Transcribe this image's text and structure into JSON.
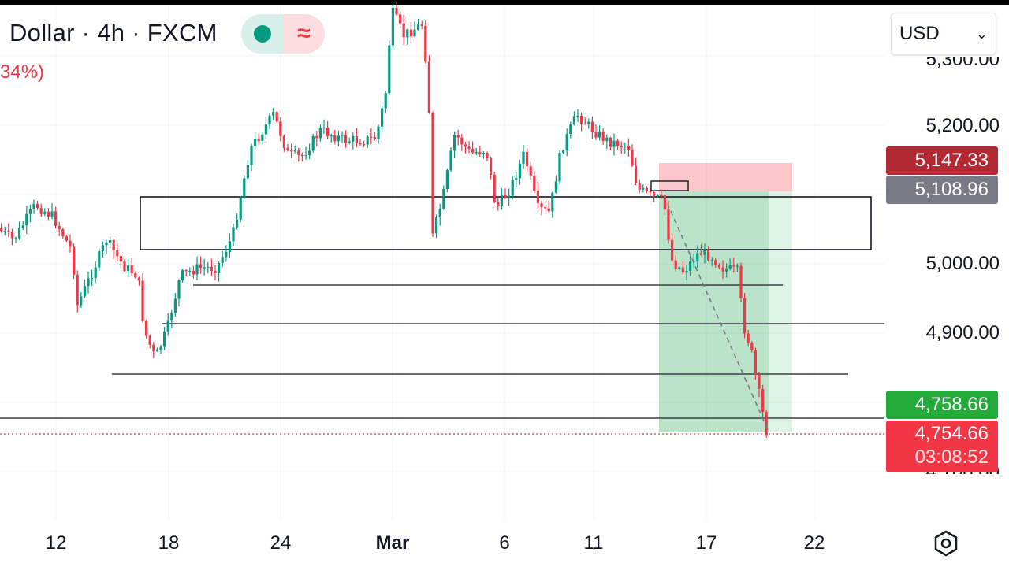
{
  "header": {
    "title": "Dollar · 4h · FXCM",
    "change": "34%)",
    "currency": "USD",
    "wave_icon": "≈"
  },
  "price_axis": {
    "labels": [
      "5,200.00",
      "5,000.00",
      "4,900.00"
    ],
    "top_partial": "5,300.00",
    "bottom_partial": "4,700.00"
  },
  "price_tags": {
    "stop": "5,147.33",
    "entry": "5,108.96",
    "target": "4,758.66",
    "current": "4,754.66",
    "countdown": "03:08:52"
  },
  "colors": {
    "up": "#089981",
    "down": "#f23645",
    "stop_tag": "#b22833",
    "entry_tag": "#787b86",
    "target_tag": "#22ab39",
    "current_tag": "#f23645"
  },
  "time_axis": {
    "labels": [
      "12",
      "18",
      "24",
      "Mar",
      "6",
      "11",
      "17",
      "22"
    ]
  },
  "icons": {
    "settings": "gear-icon",
    "indicator": "dot-icon",
    "wave": "wave-icon",
    "dropdown": "chevron-down-icon"
  }
}
